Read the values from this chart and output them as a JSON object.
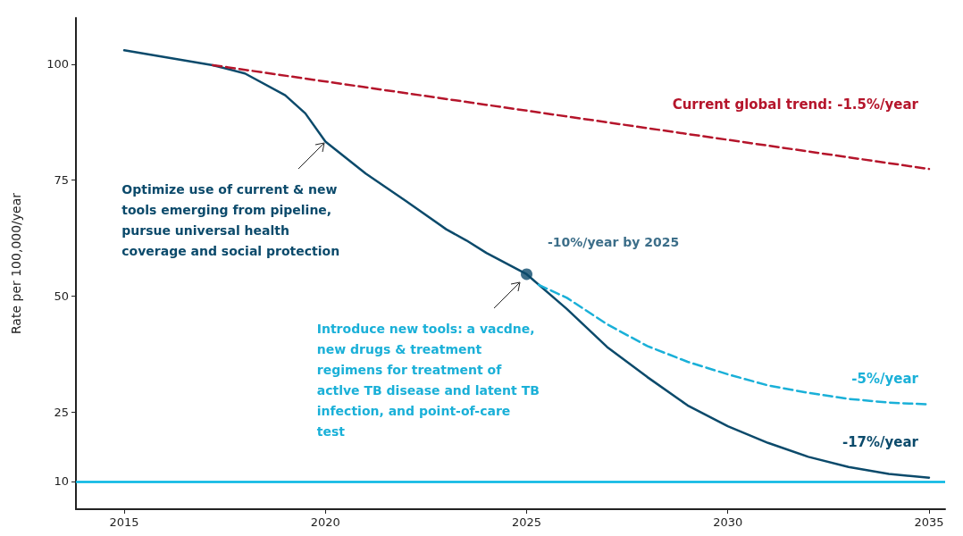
{
  "chart_data": {
    "type": "line",
    "ylabel": "Rate per 100,000/year",
    "xlim": [
      2013.8,
      2035.4
    ],
    "xticks": [
      2015,
      2020,
      2025,
      2030,
      2035
    ],
    "ylim": [
      4,
      110
    ],
    "yticks": [
      10,
      25,
      50,
      75,
      100
    ],
    "grid": false,
    "marker": "none",
    "series": [
      {
        "name": "-17%/year",
        "color": "#0b4a6b",
        "line_style": "solid",
        "x": [
          2015,
          2017.2,
          2018,
          2019,
          2019.5,
          2020,
          2021,
          2022,
          2023,
          2023.5,
          2024,
          2025,
          2026,
          2027,
          2028,
          2029,
          2030,
          2031,
          2032,
          2033,
          2034,
          2035
        ],
        "values": [
          103,
          99.8,
          98,
          93.3,
          89.4,
          83.3,
          76.4,
          70.5,
          64.4,
          62,
          59.3,
          54.7,
          47.2,
          39,
          32.5,
          26.4,
          21.9,
          18.3,
          15.3,
          13.1,
          11.6,
          10.8
        ]
      },
      {
        "name": "-5%/year",
        "color": "#1ab0d8",
        "line_style": "dashed",
        "x": [
          2025.3,
          2026,
          2027,
          2028,
          2029,
          2030,
          2031,
          2032,
          2033,
          2034,
          2035
        ],
        "values": [
          52.4,
          49.6,
          43.9,
          39.2,
          35.8,
          33.1,
          30.7,
          29.1,
          27.8,
          27,
          26.6
        ]
      },
      {
        "name": "Current global trend: -1.5%/year",
        "color": "#b5152b",
        "line_style": "dashed",
        "x": [
          2017.2,
          2035
        ],
        "values": [
          99.8,
          77.4
        ]
      },
      {
        "name": "-10%/year by 2025",
        "type": "scatter",
        "marker": "circle",
        "color": "#0b4a6b",
        "x": [
          2025
        ],
        "values": [
          54.7
        ]
      }
    ],
    "ref_lines": [
      {
        "axis": "y",
        "value": 10,
        "color": "#00b5e2",
        "line_style": "solid"
      }
    ],
    "annotations": [
      {
        "text": "Optimize use of current & new tools emerging from pipeline, pursue universal health coverage and social protection",
        "x": 2020,
        "y": 83.3
      },
      {
        "text": "Introduce new tools: a vacdne, new drugs & treatment regimens for treatment of actlve TB disease and latent TB infection, and point-of-care test",
        "x": 2024.85,
        "y": 53.1
      }
    ]
  }
}
